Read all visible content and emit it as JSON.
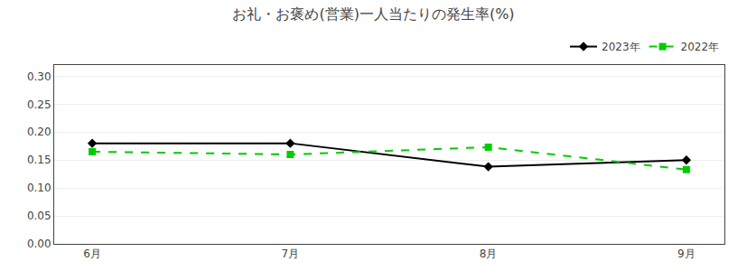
{
  "chart_data": {
    "type": "line",
    "title": "お礼・お褒め(営業)一人当たりの発生率(%)",
    "categories": [
      "6月",
      "7月",
      "8月",
      "9月"
    ],
    "series": [
      {
        "name": "2023年",
        "color": "#000000",
        "values": [
          0.18,
          0.18,
          0.138,
          0.15
        ],
        "marker": "diamond",
        "line_style": "solid"
      },
      {
        "name": "2022年",
        "color": "#00cc00",
        "values": [
          0.165,
          0.16,
          0.173,
          0.133
        ],
        "marker": "square",
        "line_style": "dashed"
      }
    ],
    "ylim": [
      0.0,
      0.32
    ],
    "yticks": [
      {
        "value": 0,
        "label": "0.00"
      },
      0.05,
      {
        "value": 0.1,
        "label": "0.10"
      },
      0.15,
      {
        "value": 0.2,
        "label": "0.20"
      },
      0.25,
      {
        "value": 0.3,
        "label": "0.30"
      }
    ],
    "grid": true,
    "legend": "upper right"
  }
}
